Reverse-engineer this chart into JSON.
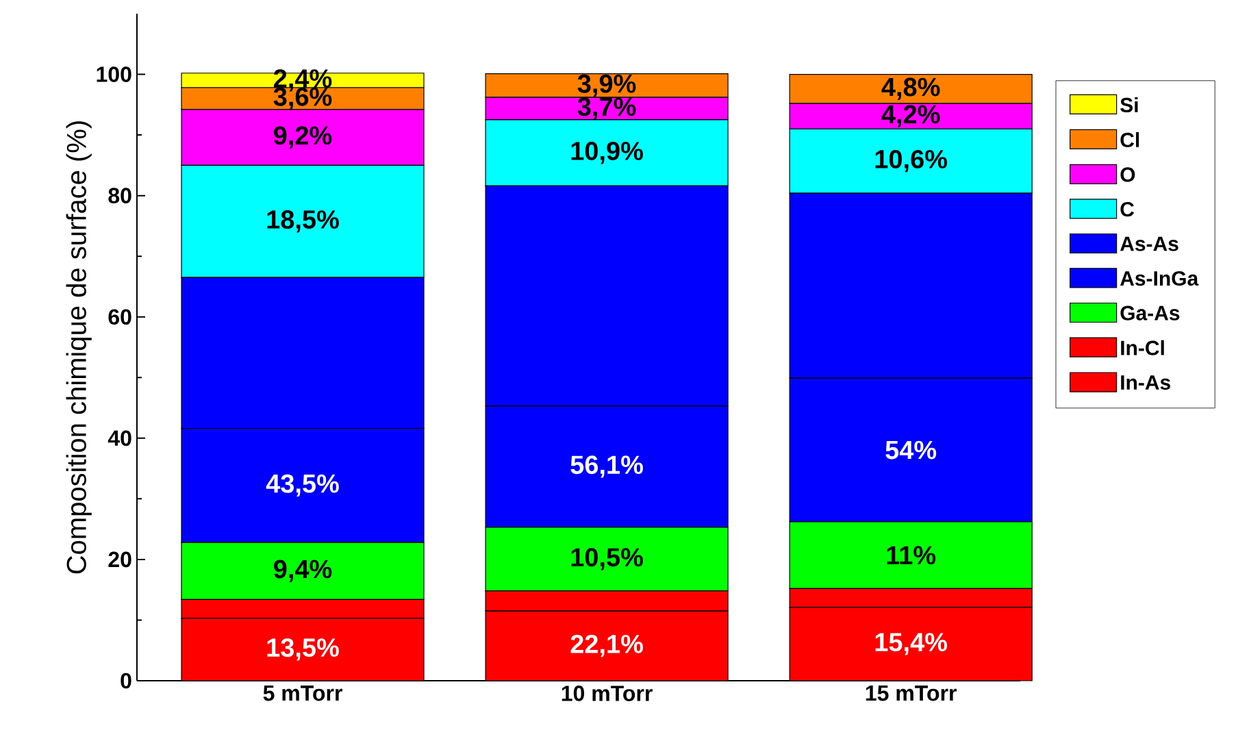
{
  "chart_data": {
    "type": "bar",
    "stacked": true,
    "ylabel": "Composition chimique de surface (%)",
    "categories": [
      "5 mTorr",
      "10 mTorr",
      "15 mTorr"
    ],
    "series": [
      {
        "name": "In-As",
        "color": "#ff0000",
        "values": [
          10.3,
          11.5,
          12.1
        ]
      },
      {
        "name": "In-Cl",
        "color": "#ff0000",
        "values": [
          3.1,
          3.3,
          3.1
        ]
      },
      {
        "name": "Ga-As",
        "color": "#00ff00",
        "values": [
          9.4,
          10.5,
          11
        ],
        "value_labels": [
          "9,4%",
          "10,5%",
          "11%"
        ]
      },
      {
        "name": "As-InGa",
        "color": "#0000ff",
        "values": [
          18.8,
          20.0,
          23.7
        ]
      },
      {
        "name": "As-As",
        "color": "#0000ff",
        "values": [
          24.9,
          36.3,
          30.5
        ]
      },
      {
        "name": "C",
        "color": "#00ffff",
        "values": [
          18.5,
          10.9,
          10.6
        ],
        "value_labels": [
          "18,5%",
          "10,9%",
          "10,6%"
        ]
      },
      {
        "name": "O",
        "color": "#ff00ff",
        "values": [
          9.2,
          3.7,
          4.2
        ],
        "value_labels": [
          "9,2%",
          "3,7%",
          "4,2%"
        ]
      },
      {
        "name": "Cl",
        "color": "#ff8000",
        "values": [
          3.6,
          3.9,
          4.8
        ],
        "value_labels": [
          "3,6%",
          "3,9%",
          "4,8%"
        ]
      },
      {
        "name": "Si",
        "color": "#ffff00",
        "values": [
          2.4,
          null,
          null
        ],
        "value_labels": [
          "2,4%",
          null,
          null
        ]
      }
    ],
    "ylim": [
      0,
      110
    ],
    "yticks": [
      0,
      20,
      40,
      60,
      80,
      100
    ],
    "legend": "right",
    "annotations": [
      {
        "text": "13,5%",
        "x": "5 mTorr",
        "y": 10.3
      },
      {
        "text": "43,5%",
        "x": "5 mTorr",
        "y": 41.6
      },
      {
        "text": "22,1%",
        "x": "10 mTorr",
        "y": 11.5
      },
      {
        "text": "56,1%",
        "x": "10 mTorr",
        "y": 45.3
      },
      {
        "text": "15,4%",
        "x": "15 mTorr",
        "y": 12.1
      },
      {
        "text": "54%",
        "x": "15 mTorr",
        "y": 49.9
      }
    ]
  }
}
